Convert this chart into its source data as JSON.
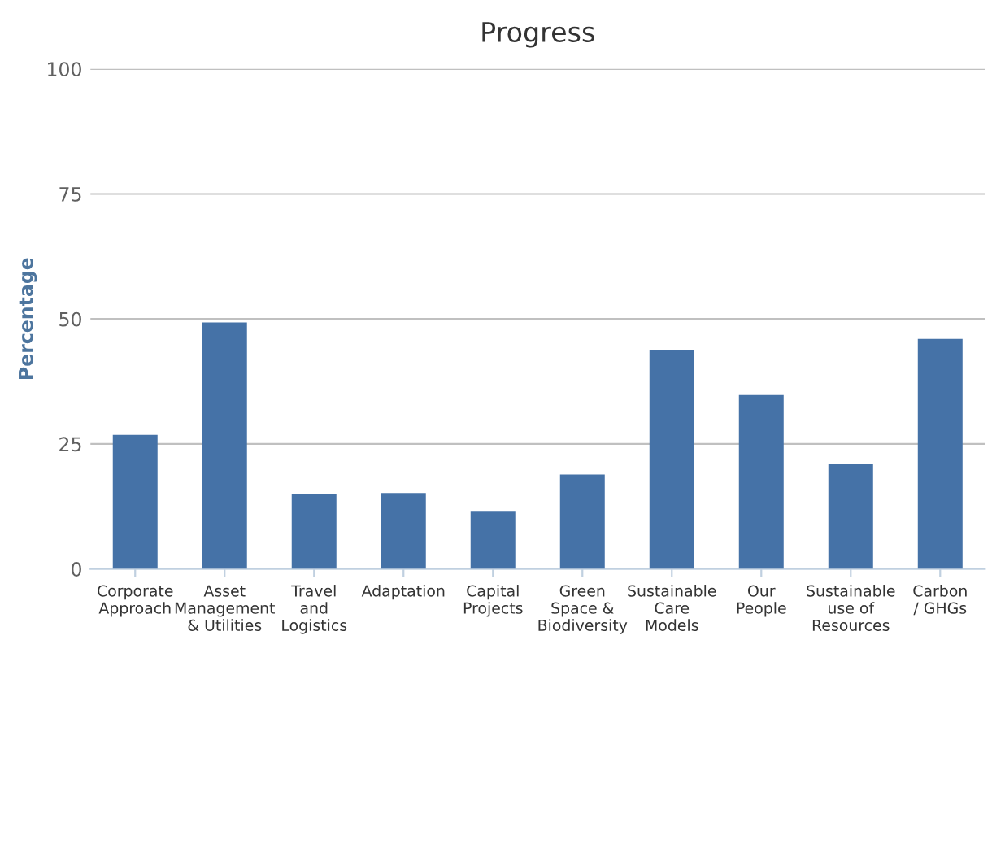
{
  "chart_data": {
    "type": "bar",
    "title": "Progress",
    "ylabel": "Percentage",
    "categories": [
      "Corporate\nApproach",
      "Asset\nManagement\n& Utilities",
      "Travel\nand\nLogistics",
      "Adaptation",
      "Capital\nProjects",
      "Green\nSpace &\nBiodiversity",
      "Sustainable\nCare\nModels",
      "Our\nPeople",
      "Sustainable\nuse of\nResources",
      "Carbon\n/ GHGs"
    ],
    "values": [
      26.8,
      49.3,
      14.9,
      15.2,
      11.6,
      18.9,
      43.7,
      34.8,
      20.9,
      46.0
    ],
    "color": "#4572a7",
    "ylim": [
      0,
      100
    ],
    "yticks": [
      0,
      25,
      50,
      75,
      100
    ],
    "grid": "y",
    "legend": false
  }
}
